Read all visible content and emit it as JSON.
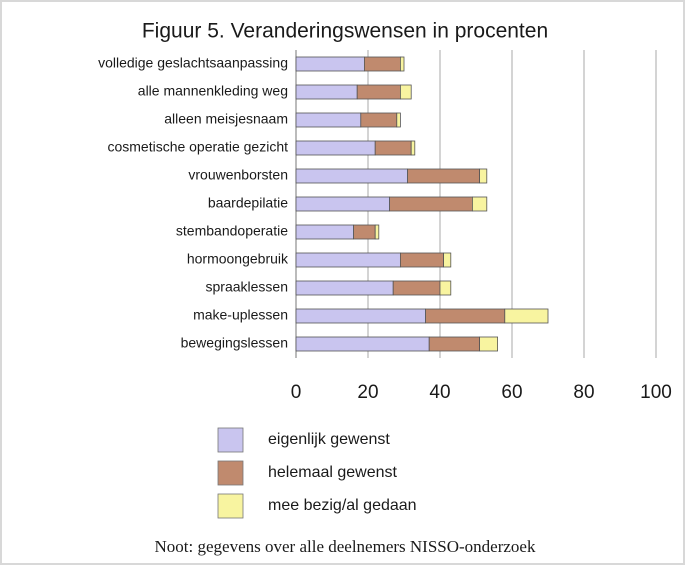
{
  "chart_data": {
    "type": "stacked_bar_horizontal",
    "title": "Figuur 5. Veranderingswensen in procenten",
    "categories": [
      "volledige geslachtsaanpassing",
      "alle mannenkleding weg",
      "alleen meisjesnaam",
      "cosmetische operatie gezicht",
      "vrouwenborsten",
      "baardepilatie",
      "stembandoperatie",
      "hormoongebruik",
      "spraaklessen",
      "make-uplessen",
      "bewegingslessen"
    ],
    "series": [
      {
        "name": "eigenlijk gewenst",
        "color": "#c9c5ef",
        "values": [
          19,
          17,
          18,
          22,
          31,
          26,
          16,
          29,
          27,
          36,
          37
        ]
      },
      {
        "name": "helemaal gewenst",
        "color": "#c08a6e",
        "values": [
          10,
          12,
          10,
          10,
          20,
          23,
          6,
          12,
          13,
          22,
          14
        ]
      },
      {
        "name": "mee bezig/al gedaan",
        "color": "#f8f4a0",
        "values": [
          1,
          3,
          1,
          1,
          2,
          4,
          1,
          2,
          3,
          12,
          5
        ]
      }
    ],
    "xlim": [
      0,
      100
    ],
    "xticks": [
      0,
      20,
      40,
      60,
      80,
      100
    ],
    "grid": true,
    "note": "Noot: gegevens over alle deelnemers NISSO-onderzoek"
  }
}
